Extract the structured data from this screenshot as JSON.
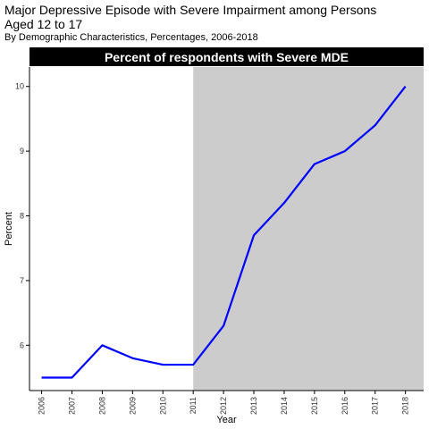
{
  "title": "Major Depressive Episode with Severe Impairment among Persons Aged 12 to 17",
  "subtitle": "By Demographic Characteristics, Percentages, 2006-2018",
  "chart_data": {
    "type": "line",
    "strip_title": "Percent of respondents with Severe MDE",
    "xlabel": "Year",
    "ylabel": "Percent",
    "x": [
      2006,
      2007,
      2008,
      2009,
      2010,
      2011,
      2012,
      2013,
      2014,
      2015,
      2016,
      2017,
      2018
    ],
    "series": [
      {
        "values": [
          5.5,
          5.5,
          6.0,
          5.8,
          5.7,
          5.7,
          6.3,
          7.7,
          8.2,
          8.8,
          9.0,
          9.4,
          10.0
        ]
      }
    ],
    "yticks": [
      6,
      7,
      8,
      9,
      10
    ],
    "ylim": [
      5.3,
      10.3
    ],
    "xlim": [
      2005.6,
      2018.6
    ],
    "shaded_region": {
      "x_start": 2011,
      "x_end": 2018.6,
      "color": "#cccccc"
    },
    "line_color": "#0000ff",
    "strip_color": "#000000",
    "grid": false
  }
}
